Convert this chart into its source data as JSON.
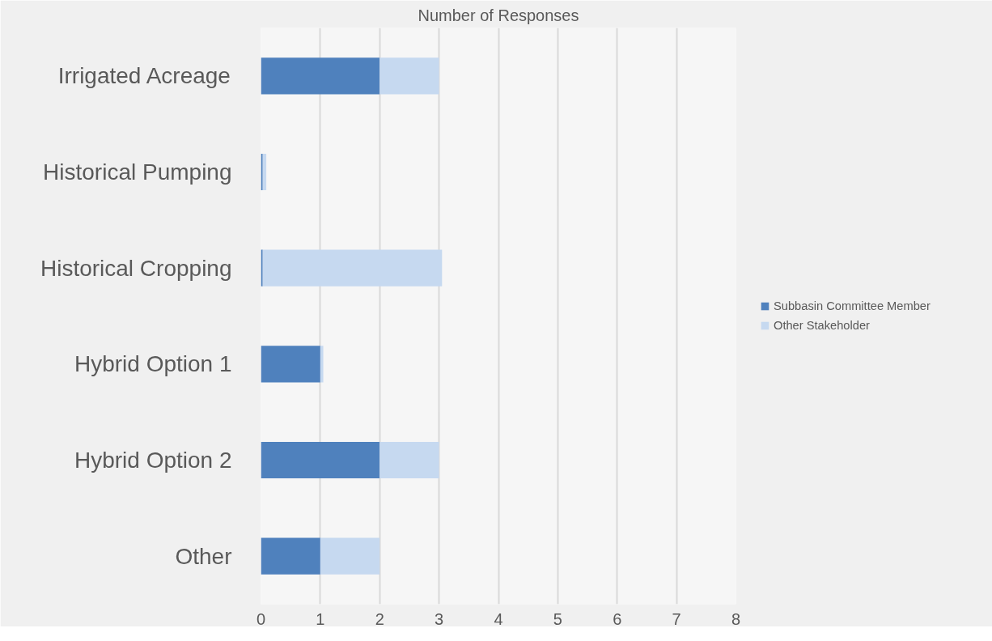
{
  "chart_data": {
    "type": "bar",
    "orientation": "horizontal",
    "stacked": true,
    "title": "Number of Responses",
    "categories": [
      "Irrigated Acreage",
      "Historical Pumping",
      "Historical Cropping",
      "Hybrid Option 1",
      "Hybrid Option 2",
      "Other"
    ],
    "series": [
      {
        "name": "Subbasin Committee Member",
        "color": "#4f81bd",
        "values": [
          2,
          0.03,
          0.03,
          1,
          2,
          1
        ]
      },
      {
        "name": "Other Stakeholder",
        "color": "#c6d9f0",
        "values": [
          1,
          0.06,
          3.02,
          0.05,
          1,
          1
        ]
      }
    ],
    "xlim": [
      0,
      8
    ],
    "xticks": [
      0,
      1,
      2,
      3,
      4,
      5,
      6,
      7,
      8
    ],
    "grid": "x",
    "legend": "right"
  }
}
